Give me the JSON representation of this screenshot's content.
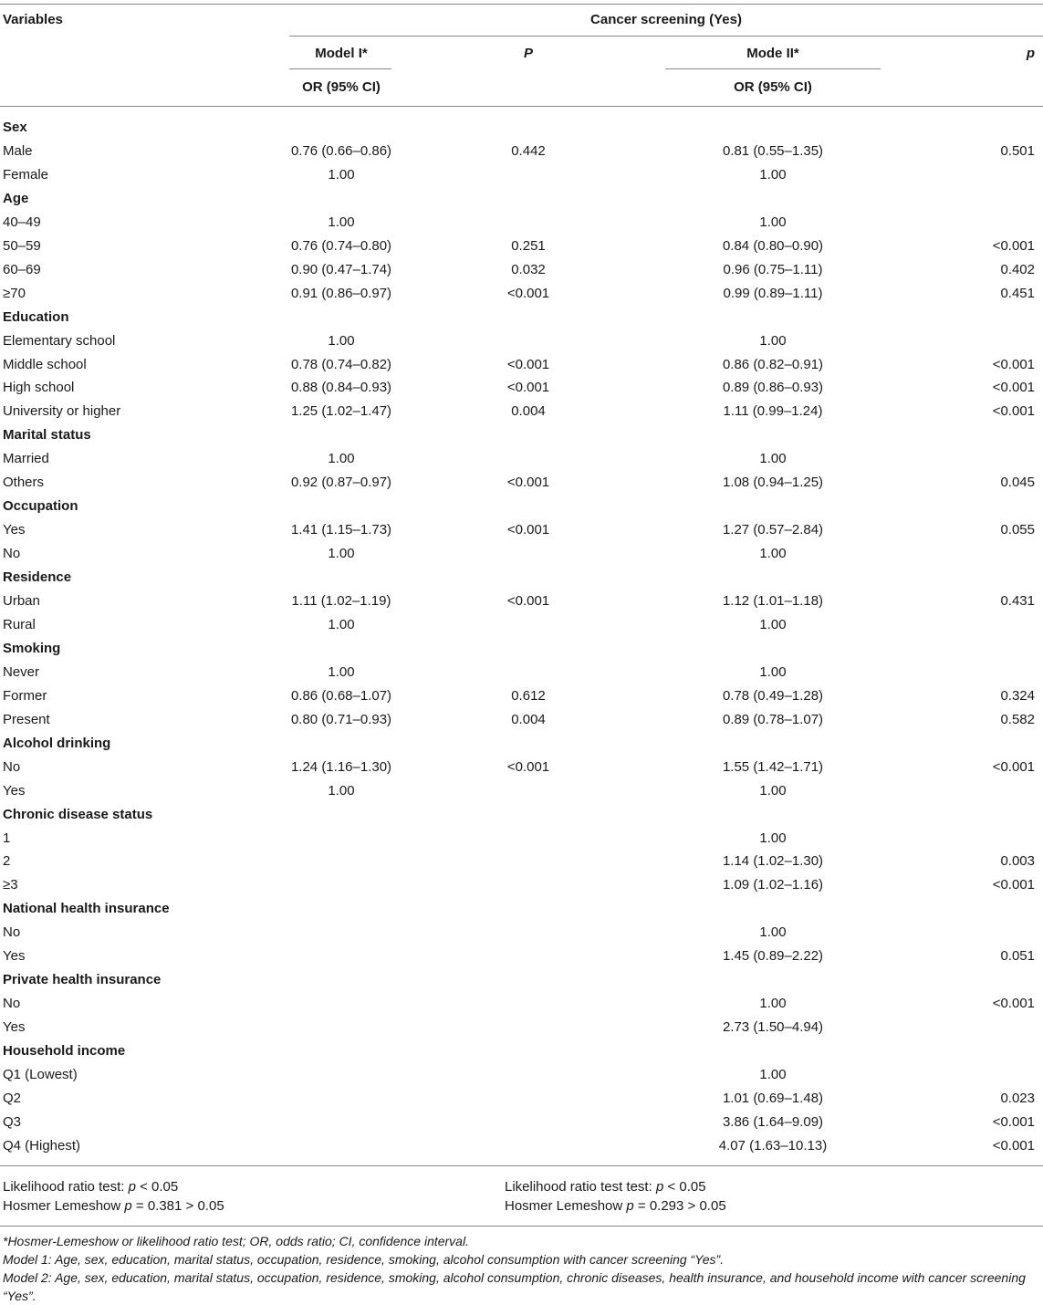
{
  "header": {
    "variables": "Variables",
    "group": "Cancer screening (Yes)",
    "model1": "Model I*",
    "p1": "P",
    "model2": "Mode II*",
    "p2": "p",
    "or1": "OR (95% CI)",
    "or2": "OR (95% CI)"
  },
  "rows": [
    {
      "label": "Sex",
      "section": true
    },
    {
      "label": "Male",
      "m1": "0.76 (0.66–0.86)",
      "p1": "0.442",
      "m2": "0.81 (0.55–1.35)",
      "p2": "0.501"
    },
    {
      "label": "Female",
      "m1": "1.00",
      "p1": "",
      "m2": "1.00",
      "p2": ""
    },
    {
      "label": "Age",
      "section": true
    },
    {
      "label": "40–49",
      "m1": "1.00",
      "p1": "",
      "m2": "1.00",
      "p2": ""
    },
    {
      "label": "50–59",
      "m1": "0.76 (0.74–0.80)",
      "p1": "0.251",
      "m2": "0.84 (0.80–0.90)",
      "p2": "<0.001"
    },
    {
      "label": "60–69",
      "m1": "0.90 (0.47–1.74)",
      "p1": "0.032",
      "m2": "0.96 (0.75–1.11)",
      "p2": "0.402"
    },
    {
      "label": "≥70",
      "m1": "0.91 (0.86–0.97)",
      "p1": "<0.001",
      "m2": "0.99 (0.89–1.11)",
      "p2": "0.451"
    },
    {
      "label": "Education",
      "section": true
    },
    {
      "label": "Elementary school",
      "m1": "1.00",
      "p1": "",
      "m2": "1.00",
      "p2": ""
    },
    {
      "label": "Middle school",
      "m1": "0.78 (0.74–0.82)",
      "p1": "<0.001",
      "m2": "0.86 (0.82–0.91)",
      "p2": "<0.001"
    },
    {
      "label": "High school",
      "m1": "0.88 (0.84–0.93)",
      "p1": "<0.001",
      "m2": "0.89 (0.86–0.93)",
      "p2": "<0.001"
    },
    {
      "label": "University or higher",
      "m1": "1.25 (1.02–1.47)",
      "p1": "0.004",
      "m2": "1.11 (0.99–1.24)",
      "p2": "<0.001"
    },
    {
      "label": "Marital status",
      "section": true
    },
    {
      "label": "Married",
      "m1": "1.00",
      "p1": "",
      "m2": "1.00",
      "p2": ""
    },
    {
      "label": "Others",
      "m1": "0.92 (0.87–0.97)",
      "p1": "<0.001",
      "m2": "1.08 (0.94–1.25)",
      "p2": "0.045"
    },
    {
      "label": "Occupation",
      "section": true
    },
    {
      "label": "Yes",
      "m1": "1.41 (1.15–1.73)",
      "p1": "<0.001",
      "m2": "1.27 (0.57–2.84)",
      "p2": "0.055"
    },
    {
      "label": "No",
      "m1": "1.00",
      "p1": "",
      "m2": "1.00",
      "p2": ""
    },
    {
      "label": "Residence",
      "section": true
    },
    {
      "label": "Urban",
      "m1": "1.11 (1.02–1.19)",
      "p1": "<0.001",
      "m2": "1.12 (1.01–1.18)",
      "p2": "0.431"
    },
    {
      "label": "Rural",
      "m1": "1.00",
      "p1": "",
      "m2": "1.00",
      "p2": ""
    },
    {
      "label": "Smoking",
      "section": true
    },
    {
      "label": "Never",
      "m1": "1.00",
      "p1": "",
      "m2": "1.00",
      "p2": ""
    },
    {
      "label": "Former",
      "m1": "0.86 (0.68–1.07)",
      "p1": "0.612",
      "m2": "0.78 (0.49–1.28)",
      "p2": "0.324"
    },
    {
      "label": "Present",
      "m1": "0.80 (0.71–0.93)",
      "p1": "0.004",
      "m2": "0.89 (0.78–1.07)",
      "p2": "0.582"
    },
    {
      "label": "Alcohol drinking",
      "section": true
    },
    {
      "label": "No",
      "m1": "1.24 (1.16–1.30)",
      "p1": "<0.001",
      "m2": "1.55 (1.42–1.71)",
      "p2": "<0.001"
    },
    {
      "label": "Yes",
      "m1": "1.00",
      "p1": "",
      "m2": "1.00",
      "p2": ""
    },
    {
      "label": "Chronic disease status",
      "section": true
    },
    {
      "label": "1",
      "m1": "",
      "p1": "",
      "m2": "1.00",
      "p2": ""
    },
    {
      "label": "2",
      "m1": "",
      "p1": "",
      "m2": "1.14 (1.02–1.30)",
      "p2": "0.003"
    },
    {
      "label": "≥3",
      "m1": "",
      "p1": "",
      "m2": "1.09 (1.02–1.16)",
      "p2": "<0.001"
    },
    {
      "label": "National health insurance",
      "section": true
    },
    {
      "label": "No",
      "m1": "",
      "p1": "",
      "m2": "1.00",
      "p2": ""
    },
    {
      "label": "Yes",
      "m1": "",
      "p1": "",
      "m2": "1.45 (0.89–2.22)",
      "p2": "0.051"
    },
    {
      "label": "Private health insurance",
      "section": true
    },
    {
      "label": "No",
      "m1": "",
      "p1": "",
      "m2": "1.00",
      "p2": "<0.001"
    },
    {
      "label": "Yes",
      "m1": "",
      "p1": "",
      "m2": "2.73 (1.50–4.94)",
      "p2": ""
    },
    {
      "label": "Household income",
      "section": true
    },
    {
      "label": "Q1 (Lowest)",
      "m1": "",
      "p1": "",
      "m2": "1.00",
      "p2": ""
    },
    {
      "label": "Q2",
      "m1": "",
      "p1": "",
      "m2": "1.01 (0.69–1.48)",
      "p2": "0.023"
    },
    {
      "label": "Q3",
      "m1": "",
      "p1": "",
      "m2": "3.86 (1.64–9.09)",
      "p2": "<0.001"
    },
    {
      "label": "Q4 (Highest)",
      "m1": "",
      "p1": "",
      "m2": "4.07 (1.63–10.13)",
      "p2": "<0.001"
    }
  ],
  "stats": {
    "lr1_prefix": "Likelihood ratio test: ",
    "lr1_p": "p",
    "lr1_suffix": " < 0.05",
    "hl1_prefix": "Hosmer Lemeshow ",
    "hl1_p": "p",
    "hl1_suffix": " = 0.381 > 0.05",
    "lr2_prefix": "Likelihood ratio test test: ",
    "lr2_p": "p",
    "lr2_suffix": " < 0.05",
    "hl2_prefix": "Hosmer Lemeshow ",
    "hl2_p": "p",
    "hl2_suffix": " = 0.293 > 0.05"
  },
  "footnotes": [
    "*Hosmer-Lemeshow or likelihood ratio test; OR, odds ratio; CI, confidence interval.",
    "Model 1: Age, sex, education, marital status, occupation, residence, smoking, alcohol consumption with cancer screening “Yes”.",
    "Model 2: Age, sex, education, marital status, occupation, residence, smoking, alcohol consumption, chronic diseases, health insurance, and household income with cancer screening “Yes”."
  ]
}
